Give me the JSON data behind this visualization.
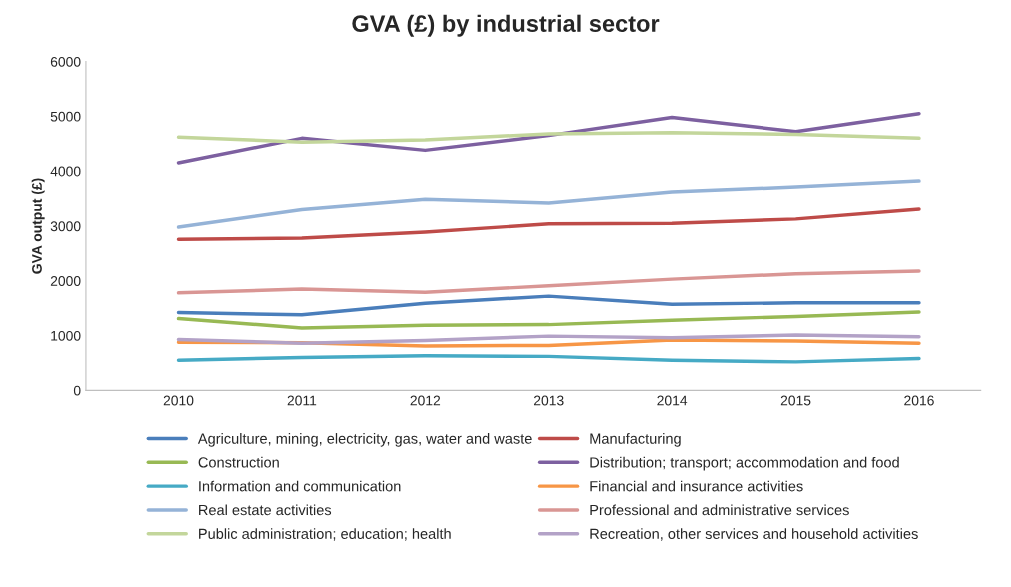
{
  "chart_data": {
    "type": "line",
    "title": "GVA (£) by industrial sector",
    "ylabel": "GVA output (£)",
    "categories": [
      "2010",
      "2011",
      "2012",
      "2013",
      "2014",
      "2015",
      "2016"
    ],
    "ylim": [
      0,
      6000
    ],
    "yticks": [
      0,
      1000,
      2000,
      3000,
      4000,
      5000,
      6000
    ],
    "grid": false,
    "legend": "bottom",
    "marker": "none",
    "series": [
      {
        "name": "Agriculture, mining, electricity, gas, water and waste",
        "color": "#4a7ebb",
        "values": [
          1420,
          1380,
          1590,
          1720,
          1570,
          1600,
          1600
        ]
      },
      {
        "name": "Manufacturing",
        "color": "#be4b48",
        "values": [
          2760,
          2780,
          2890,
          3040,
          3050,
          3130,
          3310
        ]
      },
      {
        "name": "Construction",
        "color": "#98b954",
        "values": [
          1310,
          1140,
          1190,
          1200,
          1280,
          1350,
          1430
        ]
      },
      {
        "name": "Distribution; transport; accommodation and food",
        "color": "#7d60a0",
        "values": [
          4150,
          4600,
          4380,
          4650,
          4980,
          4720,
          5050
        ]
      },
      {
        "name": "Information and communication",
        "color": "#46aac5",
        "values": [
          550,
          600,
          630,
          620,
          550,
          520,
          580
        ]
      },
      {
        "name": "Financial and insurance activities",
        "color": "#f79646",
        "values": [
          880,
          870,
          810,
          820,
          920,
          900,
          860
        ]
      },
      {
        "name": "Real estate activities",
        "color": "#95b3d7",
        "values": [
          2980,
          3300,
          3490,
          3420,
          3620,
          3710,
          3820
        ]
      },
      {
        "name": "Professional and administrative services",
        "color": "#d99694",
        "values": [
          1780,
          1850,
          1790,
          1910,
          2030,
          2130,
          2180
        ]
      },
      {
        "name": "Public administration; education; health",
        "color": "#c3d69b",
        "values": [
          4620,
          4530,
          4570,
          4680,
          4700,
          4670,
          4600
        ]
      },
      {
        "name": "Recreation, other services and household activities",
        "color": "#b3a2c7",
        "values": [
          930,
          860,
          910,
          990,
          960,
          1010,
          980
        ]
      }
    ]
  }
}
